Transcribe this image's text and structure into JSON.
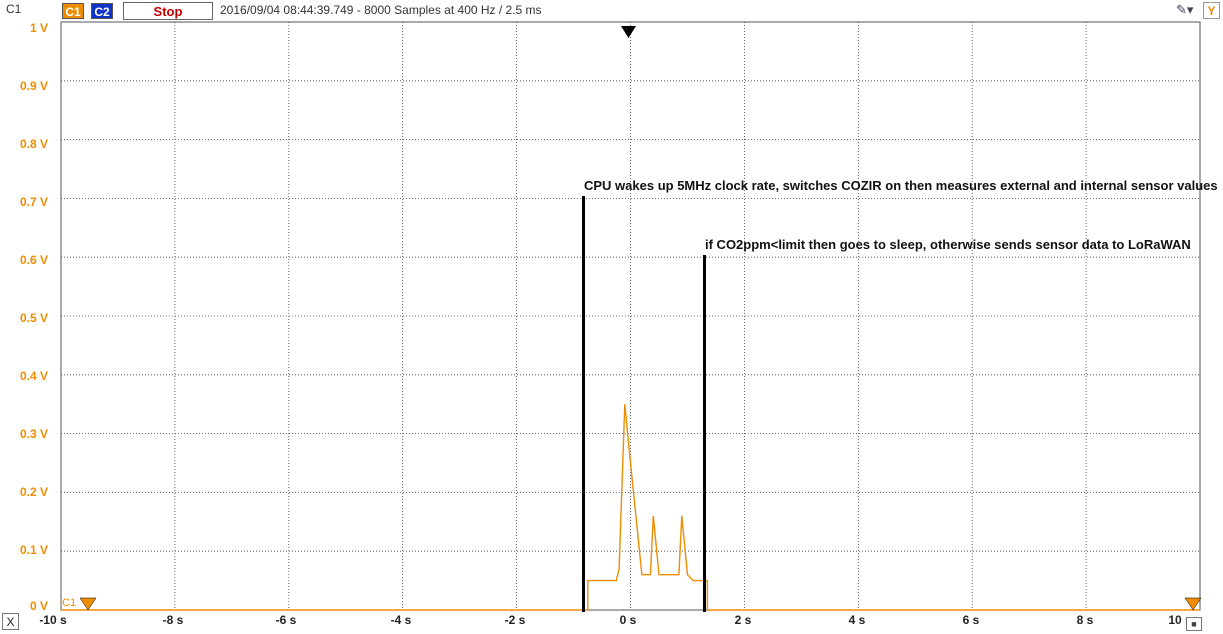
{
  "toolbar": {
    "channel_label": "C1",
    "c1_button": "C1",
    "c2_button": "C2",
    "stop_button": "Stop",
    "status": "2016/09/04  08:44:39.749 - 8000 Samples at 400 Hz / 2.5 ms",
    "y_button": "Y"
  },
  "axes": {
    "y_labels": [
      "1 V",
      "0.9 V",
      "0.8 V",
      "0.7 V",
      "0.6 V",
      "0.5 V",
      "0.4 V",
      "0.3 V",
      "0.2 V",
      "0.1 V",
      "0 V"
    ],
    "x_labels": [
      "-10 s",
      "-8 s",
      "-6 s",
      "-4 s",
      "-2 s",
      "0 s",
      "2 s",
      "4 s",
      "6 s",
      "8 s",
      "10 s"
    ],
    "x_button": "X",
    "channel_marker": "C1"
  },
  "annotations": {
    "cpu_wake": "CPU wakes up 5MHz clock rate, switches COZIR on then measures external and internal sensor values",
    "sleep": "if CO2ppm<limit then goes to sleep, otherwise sends sensor data to LoRaWAN"
  },
  "colors": {
    "trace": "#f08c00",
    "grid": "#444444",
    "marker_line": "#000000"
  },
  "chart_data": {
    "type": "line",
    "x_unit": "s",
    "y_unit": "V",
    "xlim": [
      -10,
      10
    ],
    "ylim": [
      0,
      1
    ],
    "grid": true,
    "trigger_time": 0,
    "series": [
      {
        "name": "C1",
        "x": [
          -10,
          -0.75,
          -0.75,
          -0.25,
          -0.2,
          -0.1,
          0.0,
          0.2,
          0.35,
          0.4,
          0.5,
          0.6,
          0.85,
          0.9,
          1.0,
          1.1,
          1.35,
          1.35,
          10
        ],
        "y": [
          0.0,
          0.0,
          0.05,
          0.05,
          0.07,
          0.35,
          0.25,
          0.06,
          0.06,
          0.16,
          0.06,
          0.06,
          0.06,
          0.16,
          0.06,
          0.05,
          0.05,
          0.0,
          0.0
        ]
      }
    ],
    "markers": [
      -0.75,
      1.35
    ]
  }
}
